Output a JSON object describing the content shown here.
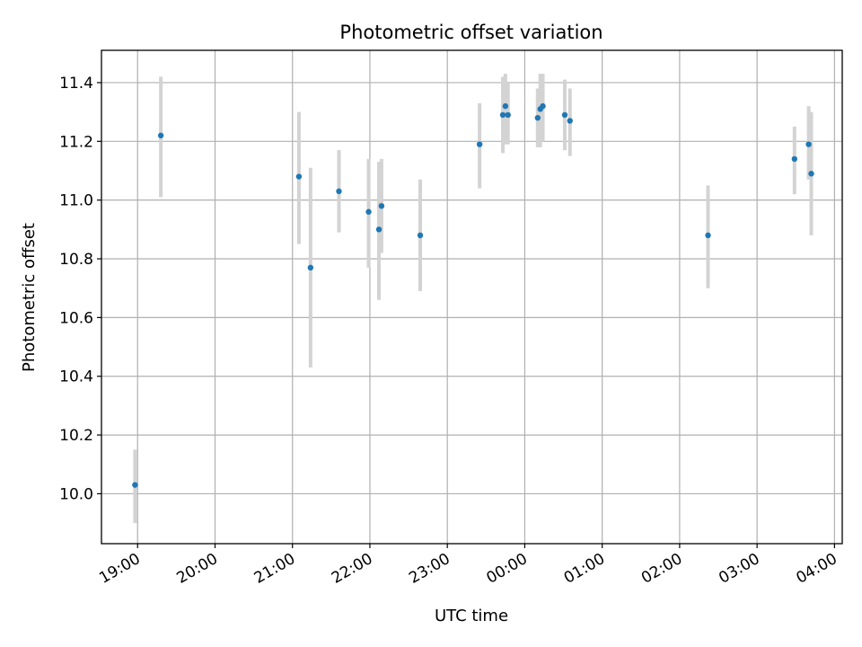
{
  "chart_data": {
    "type": "scatter",
    "title": "Photometric offset variation",
    "xlabel": "UTC time",
    "ylabel": "Photometric offset",
    "grid": true,
    "colors": {
      "points": "#1f77b4",
      "error_bars": "#d3d3d3",
      "grid": "#b0b0b0"
    },
    "x_ticks": [
      "19:00",
      "20:00",
      "21:00",
      "22:00",
      "23:00",
      "00:00",
      "01:00",
      "02:00",
      "03:00",
      "04:00"
    ],
    "y_ticks": [
      "10.0",
      "10.2",
      "10.4",
      "10.6",
      "10.8",
      "11.0",
      "11.2",
      "11.4"
    ],
    "xlim": [
      "18:32",
      "04:06"
    ],
    "ylim": [
      9.83,
      11.51
    ],
    "points": [
      {
        "time": "18:58",
        "y": 10.03,
        "err_low": 9.9,
        "err_high": 10.15
      },
      {
        "time": "19:18",
        "y": 11.22,
        "err_low": 11.01,
        "err_high": 11.42
      },
      {
        "time": "21:05",
        "y": 11.08,
        "err_low": 10.85,
        "err_high": 11.3
      },
      {
        "time": "21:14",
        "y": 10.77,
        "err_low": 10.43,
        "err_high": 11.11
      },
      {
        "time": "21:36",
        "y": 11.03,
        "err_low": 10.89,
        "err_high": 11.17
      },
      {
        "time": "21:59",
        "y": 10.96,
        "err_low": 10.77,
        "err_high": 11.14
      },
      {
        "time": "22:07",
        "y": 10.9,
        "err_low": 10.66,
        "err_high": 11.13
      },
      {
        "time": "22:09",
        "y": 10.98,
        "err_low": 10.82,
        "err_high": 11.14
      },
      {
        "time": "22:39",
        "y": 10.88,
        "err_low": 10.69,
        "err_high": 11.07
      },
      {
        "time": "23:25",
        "y": 11.19,
        "err_low": 11.04,
        "err_high": 11.33
      },
      {
        "time": "23:43",
        "y": 11.29,
        "err_low": 11.16,
        "err_high": 11.42
      },
      {
        "time": "23:45",
        "y": 11.32,
        "err_low": 11.19,
        "err_high": 11.43
      },
      {
        "time": "23:47",
        "y": 11.29,
        "err_low": 11.19,
        "err_high": 11.4
      },
      {
        "time": "00:10",
        "y": 11.28,
        "err_low": 11.18,
        "err_high": 11.38
      },
      {
        "time": "00:12",
        "y": 11.31,
        "err_low": 11.18,
        "err_high": 11.43
      },
      {
        "time": "00:14",
        "y": 11.32,
        "err_low": 11.2,
        "err_high": 11.43
      },
      {
        "time": "00:31",
        "y": 11.29,
        "err_low": 11.17,
        "err_high": 11.41
      },
      {
        "time": "00:35",
        "y": 11.27,
        "err_low": 11.15,
        "err_high": 11.38
      },
      {
        "time": "02:22",
        "y": 10.88,
        "err_low": 10.7,
        "err_high": 11.05
      },
      {
        "time": "03:29",
        "y": 11.14,
        "err_low": 11.02,
        "err_high": 11.25
      },
      {
        "time": "03:40",
        "y": 11.19,
        "err_low": 11.07,
        "err_high": 11.32
      },
      {
        "time": "03:42",
        "y": 11.09,
        "err_low": 10.88,
        "err_high": 11.3
      }
    ]
  }
}
